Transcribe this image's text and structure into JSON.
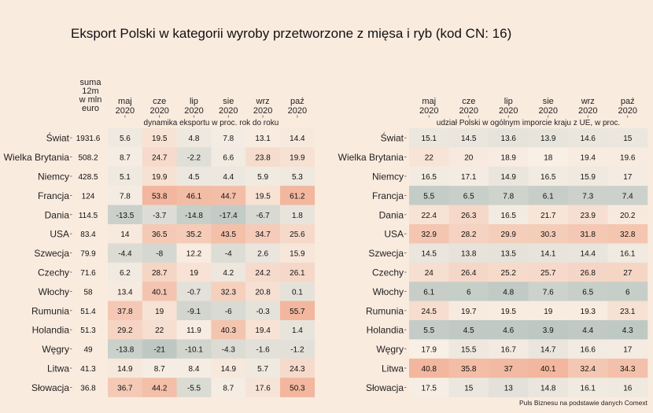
{
  "chart_data": {
    "type": "heatmap",
    "title": "Eksport Polski w kategorii wyroby przetworzone z mięsa i ryb (kod CN: 16)",
    "source": "Puls Biznesu na podstawie danych Comext",
    "rows": [
      "Świat",
      "Wielka Brytania",
      "Niemcy",
      "Francja",
      "Dania",
      "USA",
      "Szwecja",
      "Czechy",
      "Włochy",
      "Rumunia",
      "Holandia",
      "Węgry",
      "Litwa",
      "Słowacja"
    ],
    "sum_header": [
      "suma",
      "12m",
      "w mln",
      "euro"
    ],
    "sum_values": [
      1931.6,
      508.2,
      428.5,
      124,
      114.5,
      83.4,
      79.9,
      71.6,
      58,
      51.4,
      51.3,
      49,
      41.3,
      36.8
    ],
    "colors": {
      "low": "#BEC8C3",
      "mid": "#F8EFE5",
      "high": "#F2B79E",
      "background": "#FAEBDF"
    },
    "panels": [
      {
        "subtitle": "dynamika eksportu w proc. rok do roku",
        "columns": [
          [
            "maj",
            "2020"
          ],
          [
            "cze",
            "2020"
          ],
          [
            "lip",
            "2020"
          ],
          [
            "sie",
            "2020"
          ],
          [
            "wrz",
            "2020"
          ],
          [
            "paź",
            "2020"
          ]
        ],
        "values": [
          [
            5.6,
            19.5,
            4.8,
            7.8,
            13.1,
            14.4
          ],
          [
            8.7,
            24.7,
            -2.2,
            6.6,
            23.8,
            19.9
          ],
          [
            5.1,
            19.9,
            4.5,
            4.4,
            5.9,
            5.3
          ],
          [
            7.8,
            53.8,
            46.1,
            44.7,
            19.5,
            61.2
          ],
          [
            -13.5,
            -3.7,
            -14.8,
            -17.4,
            -6.7,
            1.8
          ],
          [
            14,
            36.5,
            35.2,
            43.5,
            34.7,
            25.6
          ],
          [
            -4.4,
            -8,
            12.2,
            -4,
            2.6,
            15.9
          ],
          [
            6.2,
            28.7,
            19,
            4.2,
            24.2,
            26.1
          ],
          [
            13.4,
            40.1,
            -0.7,
            32.3,
            20.8,
            0.1
          ],
          [
            37.8,
            19,
            -9.1,
            -6,
            -0.3,
            55.7
          ],
          [
            29.2,
            22,
            11.9,
            40.3,
            19.4,
            1.4
          ],
          [
            -13.8,
            -21,
            -10.1,
            -4.3,
            -1.6,
            -1.2
          ],
          [
            14.9,
            8.7,
            8.4,
            14.9,
            5.7,
            24.3
          ],
          [
            36.7,
            44.2,
            -5.5,
            8.7,
            17.6,
            50.3
          ]
        ],
        "color_domain": [
          -20,
          10,
          50
        ]
      },
      {
        "subtitle": "udział Polski w ogólnym imporcie kraju z UE, w proc.",
        "columns": [
          [
            "maj",
            "2020"
          ],
          [
            "cze",
            "2020"
          ],
          [
            "lip",
            "2020"
          ],
          [
            "sie",
            "2020"
          ],
          [
            "wrz",
            "2020"
          ],
          [
            "paź",
            "2020"
          ]
        ],
        "values": [
          [
            15.1,
            14.5,
            13.6,
            13.9,
            14.6,
            15
          ],
          [
            22,
            20,
            18.9,
            18,
            19.4,
            19.6
          ],
          [
            16.5,
            17.1,
            14.9,
            16.5,
            15.9,
            17
          ],
          [
            5.5,
            6.5,
            7.8,
            6.1,
            7.3,
            7.4
          ],
          [
            22.4,
            26.3,
            16.5,
            21.7,
            23.9,
            20.2
          ],
          [
            32.9,
            28.2,
            29.9,
            30.3,
            31.8,
            32.8
          ],
          [
            14.5,
            13.8,
            13.5,
            14.1,
            14.4,
            16.1
          ],
          [
            24,
            26.4,
            25.2,
            25.7,
            26.8,
            27
          ],
          [
            6.1,
            6,
            4.8,
            7.6,
            6.5,
            6
          ],
          [
            24.5,
            19.7,
            19.5,
            19,
            19.3,
            23.1
          ],
          [
            5.5,
            4.5,
            4.6,
            3.9,
            4.4,
            4.3
          ],
          [
            17.9,
            15.5,
            16.7,
            14.7,
            16.6,
            17
          ],
          [
            40.8,
            35.8,
            37,
            40.1,
            32.4,
            34.3
          ],
          [
            17.5,
            15,
            13,
            14.8,
            16.1,
            16
          ]
        ],
        "color_domain": [
          4,
          18,
          38
        ]
      }
    ]
  }
}
